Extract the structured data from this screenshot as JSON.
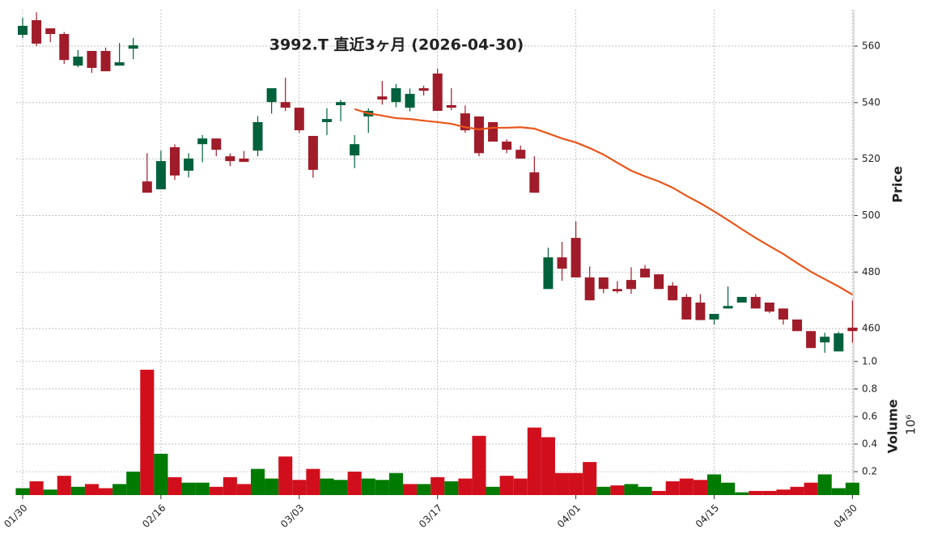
{
  "chart_data": {
    "type": "candlestick",
    "title": "3992.T  直近3ヶ月  (2026-04-30)",
    "categories": [
      "01/30",
      null,
      null,
      null,
      null,
      null,
      null,
      null,
      null,
      null,
      "02/16",
      null,
      null,
      null,
      null,
      null,
      null,
      null,
      null,
      null,
      "03/03",
      null,
      null,
      null,
      null,
      null,
      null,
      null,
      null,
      null,
      "03/17",
      null,
      null,
      null,
      null,
      null,
      null,
      null,
      null,
      null,
      "04/01",
      null,
      null,
      null,
      null,
      null,
      null,
      null,
      null,
      null,
      "04/15",
      null,
      null,
      null,
      null,
      null,
      null,
      null,
      null,
      null,
      "04/30"
    ],
    "open": [
      564.0,
      569.2,
      566.3,
      564.3,
      553.1,
      558.3,
      558.3,
      553.1,
      559.1,
      512.1,
      509.3,
      524.2,
      515.9,
      525.3,
      527.3,
      521.0,
      520.2,
      523.0,
      540.2,
      540.2,
      538.2,
      528.2,
      533.1,
      539.1,
      521.3,
      535.1,
      542.2,
      540.2,
      538.2,
      545.1,
      550.3,
      539.1,
      536.2,
      535.1,
      533.1,
      526.2,
      523.3,
      515.3,
      474.0,
      485.2,
      492.1,
      478.1,
      478.1,
      474.0,
      477.2,
      481.2,
      479.2,
      475.2,
      471.2,
      469.2,
      463.2,
      467.1,
      469.2,
      471.2,
      469.2,
      467.1,
      463.2,
      459.1,
      455.1,
      451.9,
      460.3
    ],
    "high": [
      570.0,
      572.0,
      566.3,
      565.0,
      558.6,
      558.3,
      559.5,
      561.1,
      562.9,
      522.1,
      523.0,
      525.2,
      522.1,
      528.5,
      527.3,
      522.0,
      522.9,
      535.2,
      545.1,
      548.8,
      538.2,
      528.2,
      538.0,
      541.0,
      528.5,
      538.0,
      547.7,
      546.6,
      545.0,
      546.0,
      552.0,
      545.1,
      539.0,
      535.1,
      533.1,
      527.0,
      524.8,
      521.0,
      488.6,
      490.7,
      497.9,
      482.0,
      478.1,
      476.8,
      481.7,
      482.5,
      479.2,
      476.5,
      472.2,
      472.2,
      465.2,
      474.9,
      471.2,
      472.2,
      469.2,
      467.1,
      463.2,
      459.1,
      458.5,
      458.8,
      470.0
    ],
    "low": [
      562.9,
      560.0,
      561.4,
      553.7,
      552.5,
      550.5,
      551.1,
      553.1,
      555.4,
      508.1,
      509.3,
      512.6,
      513.5,
      518.9,
      521.0,
      517.5,
      519.0,
      521.0,
      536.1,
      537.0,
      529.3,
      513.4,
      528.5,
      533.4,
      516.8,
      529.3,
      539.3,
      538.4,
      536.9,
      542.5,
      537.1,
      537.3,
      529.3,
      521.0,
      526.2,
      522.1,
      520.2,
      508.1,
      474.0,
      476.9,
      478.1,
      470.0,
      472.5,
      472.5,
      472.3,
      478.1,
      474.0,
      470.0,
      463.2,
      463.0,
      461.4,
      467.1,
      469.2,
      467.1,
      465.5,
      461.4,
      459.1,
      453.1,
      451.4,
      451.9,
      455.0
    ],
    "close": [
      567.2,
      560.9,
      564.3,
      555.1,
      556.3,
      552.3,
      551.1,
      554.3,
      560.3,
      508.1,
      519.3,
      514.2,
      520.2,
      527.3,
      523.3,
      519.3,
      519.0,
      533.1,
      545.1,
      538.2,
      530.2,
      516.2,
      534.2,
      540.2,
      525.3,
      537.1,
      541.1,
      545.1,
      543.1,
      544.2,
      537.1,
      538.2,
      530.2,
      522.1,
      526.2,
      523.3,
      520.2,
      508.1,
      485.2,
      481.2,
      478.1,
      470.0,
      474.0,
      473.2,
      474.0,
      478.1,
      474.0,
      470.0,
      463.2,
      463.0,
      465.2,
      468.0,
      471.2,
      467.1,
      466.0,
      463.2,
      459.1,
      453.1,
      457.1,
      458.3,
      459.1
    ],
    "up_color": "#00613c",
    "down_color": "#a01c2a",
    "moving_average": {
      "color": "#e8561a",
      "values": [
        null,
        null,
        null,
        null,
        null,
        null,
        null,
        null,
        null,
        null,
        null,
        null,
        null,
        null,
        null,
        null,
        null,
        null,
        null,
        null,
        null,
        null,
        null,
        null,
        537.7,
        536.2,
        535.4,
        534.5,
        534.2,
        533.6,
        533.1,
        532.5,
        531.3,
        530.5,
        531.1,
        531.1,
        531.3,
        530.8,
        529.1,
        527.3,
        525.9,
        523.9,
        521.6,
        518.7,
        515.9,
        513.9,
        512.1,
        509.9,
        507.0,
        504.4,
        501.5,
        498.4,
        495.2,
        492.1,
        489.2,
        486.4,
        483.2,
        480.1,
        477.5,
        474.9,
        472.0
      ]
    },
    "ylabel": "Price",
    "ylim": [
      450.3,
      572.9
    ],
    "yticks": [
      460,
      480,
      500,
      520,
      540,
      560
    ],
    "grid": true,
    "volume": {
      "label": "Volume",
      "exponent": "10⁶",
      "up_color": "#007a00",
      "down_color": "#d10f1c",
      "values": [
        0.08,
        0.13,
        0.07,
        0.17,
        0.09,
        0.11,
        0.08,
        0.11,
        0.2,
        0.94,
        0.33,
        0.16,
        0.12,
        0.12,
        0.09,
        0.16,
        0.11,
        0.22,
        0.15,
        0.31,
        0.14,
        0.22,
        0.15,
        0.14,
        0.2,
        0.15,
        0.14,
        0.19,
        0.11,
        0.11,
        0.16,
        0.13,
        0.15,
        0.46,
        0.09,
        0.17,
        0.15,
        0.52,
        0.45,
        0.19,
        0.19,
        0.27,
        0.09,
        0.1,
        0.11,
        0.09,
        0.06,
        0.13,
        0.15,
        0.14,
        0.18,
        0.12,
        0.05,
        0.06,
        0.06,
        0.07,
        0.09,
        0.12,
        0.18,
        0.08,
        0.12
      ],
      "ylim": [
        0.03,
        1.04
      ],
      "yticks": [
        0.2,
        0.4,
        0.6,
        0.8,
        {
          "value": 1,
          "label": "1.0"
        }
      ]
    }
  }
}
